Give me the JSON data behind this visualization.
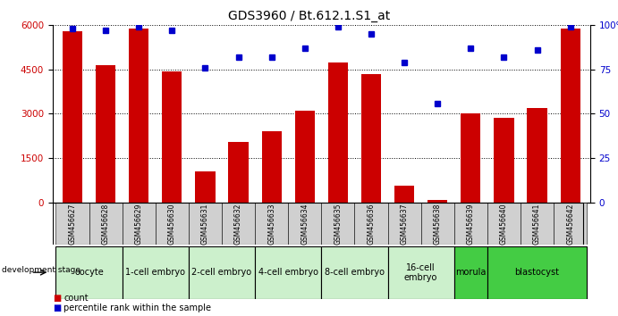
{
  "title": "GDS3960 / Bt.612.1.S1_at",
  "samples": [
    "GSM456627",
    "GSM456628",
    "GSM456629",
    "GSM456630",
    "GSM456631",
    "GSM456632",
    "GSM456633",
    "GSM456634",
    "GSM456635",
    "GSM456636",
    "GSM456637",
    "GSM456638",
    "GSM456639",
    "GSM456640",
    "GSM456641",
    "GSM456642"
  ],
  "counts": [
    5800,
    4650,
    5900,
    4450,
    1050,
    2050,
    2400,
    3100,
    4750,
    4350,
    550,
    70,
    3000,
    2850,
    3200,
    5900
  ],
  "percentiles": [
    98,
    97,
    99,
    97,
    76,
    82,
    82,
    87,
    99,
    95,
    79,
    56,
    87,
    82,
    86,
    99
  ],
  "ylim_left": [
    0,
    6000
  ],
  "ylim_right": [
    0,
    100
  ],
  "yticks_left": [
    0,
    1500,
    3000,
    4500,
    6000
  ],
  "yticks_right": [
    0,
    25,
    50,
    75,
    100
  ],
  "bar_color": "#cc0000",
  "dot_color": "#0000cc",
  "bg_color": "#ffffff",
  "stage_groups": [
    {
      "label": "oocyte",
      "start": 0,
      "end": 2,
      "color": "#ccf0cc"
    },
    {
      "label": "1-cell embryo",
      "start": 2,
      "end": 4,
      "color": "#ccf0cc"
    },
    {
      "label": "2-cell embryo",
      "start": 4,
      "end": 6,
      "color": "#ccf0cc"
    },
    {
      "label": "4-cell embryo",
      "start": 6,
      "end": 8,
      "color": "#ccf0cc"
    },
    {
      "label": "8-cell embryo",
      "start": 8,
      "end": 10,
      "color": "#ccf0cc"
    },
    {
      "label": "16-cell\nembryo",
      "start": 10,
      "end": 12,
      "color": "#ccf0cc"
    },
    {
      "label": "morula",
      "start": 12,
      "end": 13,
      "color": "#44cc44"
    },
    {
      "label": "blastocyst",
      "start": 13,
      "end": 16,
      "color": "#44cc44"
    }
  ],
  "tick_bg": "#d0d0d0",
  "ylabel_left_color": "#cc0000",
  "ylabel_right_color": "#0000cc",
  "dev_stage_label": "development stage",
  "legend_count_label": "count",
  "legend_pct_label": "percentile rank within the sample",
  "title_fontsize": 10,
  "axis_fontsize": 7.5,
  "sample_fontsize": 5.5,
  "stage_fontsize": 7,
  "legend_fontsize": 7
}
